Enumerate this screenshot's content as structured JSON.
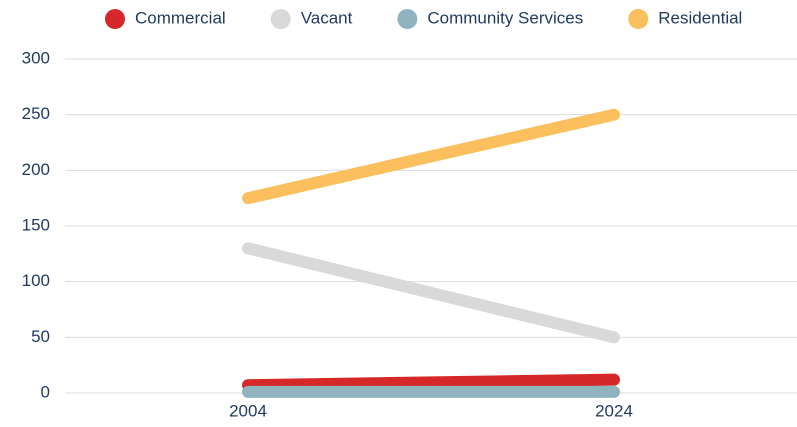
{
  "chart_data": {
    "type": "line",
    "categories": [
      "2004",
      "2024"
    ],
    "series": [
      {
        "name": "Commercial",
        "color": "#d62828",
        "values": [
          7,
          12
        ]
      },
      {
        "name": "Vacant",
        "color": "#d9d9d9",
        "values": [
          130,
          50
        ]
      },
      {
        "name": "Community Services",
        "color": "#8fb3bf",
        "values": [
          1,
          1
        ]
      },
      {
        "name": "Residential",
        "color": "#fcbf5e",
        "values": [
          175,
          250
        ]
      }
    ],
    "ylim": [
      0,
      300
    ],
    "yticks": [
      0,
      50,
      100,
      150,
      200,
      250,
      300
    ],
    "grid": true,
    "legend": "top"
  }
}
